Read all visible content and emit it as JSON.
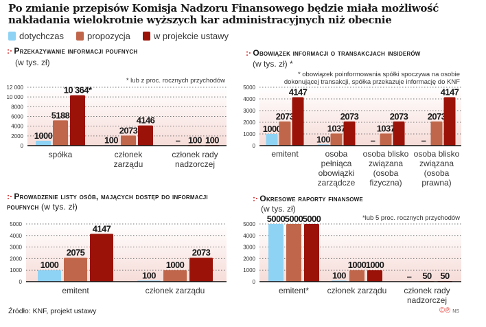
{
  "header": {
    "title": "Po zmianie przepisów Komisja Nadzoru Finansowego będzie miała możliwość nakładania wielokrotnie wyższych kar administracyjnych niż obecnie"
  },
  "legend": [
    {
      "label": "dotychczas",
      "color": "#8fd3f4"
    },
    {
      "label": "propozycja",
      "color": "#c0664a"
    },
    {
      "label": "w projekcie ustawy",
      "color": "#9a1208"
    }
  ],
  "footer": {
    "source": "Źródło: KNF, projekt ustawy",
    "copyright": "©℗",
    "author": "NS"
  },
  "chart_data": [
    {
      "type": "bar",
      "title": "Przekazywanie informacji poufnych",
      "subtitle": "(w tys. zł)",
      "note": "* lub z proc. rocznych przychodów",
      "categories": [
        "spółka",
        "członek zarządu",
        "członek rady nadzorczej"
      ],
      "ylim": [
        0,
        12000
      ],
      "yticks": [
        "0",
        "2000",
        "4000",
        "6000",
        "8000",
        "10 000",
        "12 000"
      ],
      "ytick_values": [
        0,
        2000,
        4000,
        6000,
        8000,
        10000,
        12000
      ],
      "grid": true,
      "series": [
        {
          "name": "dotychczas",
          "values": [
            1000,
            100,
            null
          ],
          "labels": [
            "1000",
            "100",
            "–"
          ]
        },
        {
          "name": "propozycja",
          "values": [
            5188,
            2073,
            100
          ],
          "labels": [
            "5188",
            "2073",
            "100"
          ]
        },
        {
          "name": "w projekcie ustawy",
          "values": [
            10364,
            4146,
            100
          ],
          "labels": [
            "10 364*",
            "4146",
            "100"
          ]
        }
      ]
    },
    {
      "type": "bar",
      "title": "Obowiązek informacji o transakcjach insiderów",
      "subtitle": "(w tys. zł) *",
      "note": "* obowiązek poinformowania spółki spoczywa na osobie dokonującej transakcji, spółka przekazuje informację do KNF",
      "categories": [
        "emitent",
        "osoba pełniąca obowiązki zarządcze",
        "osoba blisko związana (osoba fizyczna)",
        "osoba blisko związana (osoba prawna)"
      ],
      "ylim": [
        0,
        5000
      ],
      "yticks": [
        "0",
        "1000",
        "2000",
        "3000",
        "4000",
        "5000"
      ],
      "ytick_values": [
        0,
        1000,
        2000,
        3000,
        4000,
        5000
      ],
      "grid": true,
      "series": [
        {
          "name": "dotychczas",
          "values": [
            1000,
            100,
            null,
            null
          ],
          "labels": [
            "1000",
            "100",
            "–",
            "–"
          ]
        },
        {
          "name": "propozycja",
          "values": [
            2073,
            1037,
            1037,
            2073
          ],
          "labels": [
            "2073",
            "1037",
            "1037",
            "2073"
          ]
        },
        {
          "name": "w projekcie ustawy",
          "values": [
            4147,
            2073,
            2073,
            4147
          ],
          "labels": [
            "4147",
            "2073",
            "2073",
            "4147"
          ]
        }
      ]
    },
    {
      "type": "bar",
      "title": "Prowadzenie listy osób, mających dostęp do informacji poufnych",
      "subtitle": "(w tys. zł)",
      "note": "",
      "categories": [
        "emitent",
        "członek zarządu"
      ],
      "ylim": [
        0,
        5000
      ],
      "yticks": [
        "0",
        "1000",
        "2000",
        "3000",
        "4000",
        "5000"
      ],
      "ytick_values": [
        0,
        1000,
        2000,
        3000,
        4000,
        5000
      ],
      "grid": true,
      "series": [
        {
          "name": "dotychczas",
          "values": [
            1000,
            100
          ],
          "labels": [
            "1000",
            "100"
          ]
        },
        {
          "name": "propozycja",
          "values": [
            2075,
            1000
          ],
          "labels": [
            "2075",
            "1000"
          ]
        },
        {
          "name": "w projekcie ustawy",
          "values": [
            4147,
            2073
          ],
          "labels": [
            "4147",
            "2073"
          ]
        }
      ]
    },
    {
      "type": "bar",
      "title": "Okresowe raporty finansowe",
      "subtitle": "(w tys. zł)",
      "note": "*lub 5 proc. rocznych przychodów",
      "categories": [
        "emitent*",
        "członek zarządu",
        "członek rady nadzorczej"
      ],
      "ylim": [
        0,
        5000
      ],
      "yticks": [
        "0",
        "1000",
        "2000",
        "3000",
        "4000",
        "5000"
      ],
      "ytick_values": [
        0,
        1000,
        2000,
        3000,
        4000,
        5000
      ],
      "grid": true,
      "series": [
        {
          "name": "dotychczas",
          "values": [
            5000,
            100,
            null
          ],
          "labels": [
            "5000",
            "100",
            "–"
          ]
        },
        {
          "name": "propozycja",
          "values": [
            5000,
            1000,
            50
          ],
          "labels": [
            "5000",
            "1000",
            "50"
          ]
        },
        {
          "name": "w projekcie ustawy",
          "values": [
            5000,
            1000,
            50
          ],
          "labels": [
            "5000",
            "1000",
            "50"
          ]
        }
      ]
    }
  ]
}
